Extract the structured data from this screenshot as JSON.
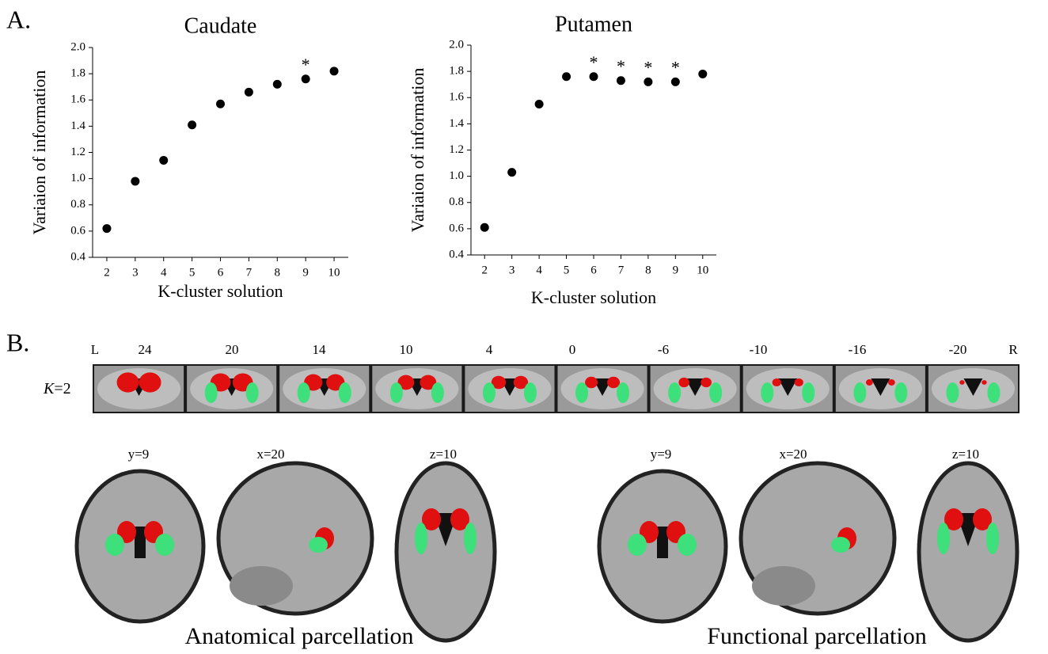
{
  "panel_a_label": "A.",
  "panel_b_label": "B.",
  "chart_data": [
    {
      "type": "scatter",
      "title": "Caudate",
      "x_label": "K-cluster solution",
      "y_label": "Variaion of information",
      "x": [
        2,
        3,
        4,
        5,
        6,
        7,
        8,
        9,
        10
      ],
      "values": [
        0.62,
        0.98,
        1.14,
        1.41,
        1.57,
        1.66,
        1.72,
        1.76,
        1.82
      ],
      "color": "#000000",
      "xlim": [
        1.5,
        10.5
      ],
      "xticks": [
        2,
        3,
        4,
        5,
        6,
        7,
        8,
        9,
        10
      ],
      "ylim": [
        0.4,
        2.0
      ],
      "yticks": [
        0.4,
        0.6,
        0.8,
        {
          "value": 1,
          "label": "1.0"
        },
        1.2,
        1.4,
        1.6,
        1.8,
        {
          "value": 2,
          "label": "2.0"
        }
      ],
      "annotations": [
        {
          "x": 9,
          "label": "*"
        }
      ]
    },
    {
      "type": "scatter",
      "title": "Putamen",
      "x_label": "K-cluster solution",
      "y_label": "Variaion of information",
      "x": [
        2,
        3,
        4,
        5,
        6,
        7,
        8,
        9,
        10
      ],
      "values": [
        0.61,
        1.03,
        1.55,
        1.76,
        1.76,
        1.73,
        1.72,
        1.72,
        1.78
      ],
      "color": "#000000",
      "xlim": [
        1.5,
        10.5
      ],
      "xticks": [
        2,
        3,
        4,
        5,
        6,
        7,
        8,
        9,
        10
      ],
      "ylim": [
        0.4,
        2.0
      ],
      "yticks": [
        0.4,
        0.6,
        0.8,
        {
          "value": 1,
          "label": "1.0"
        },
        1.2,
        1.4,
        1.6,
        1.8,
        {
          "value": 2,
          "label": "2.0"
        }
      ],
      "annotations": [
        {
          "x": 6,
          "label": "*"
        },
        {
          "x": 7,
          "label": "*"
        },
        {
          "x": 8,
          "label": "*"
        },
        {
          "x": 9,
          "label": "*"
        }
      ]
    }
  ],
  "strip": {
    "left": "L",
    "right": "R",
    "k_italic": "K",
    "k_rest": "=2",
    "slices": [
      "24",
      "20",
      "14",
      "10",
      "4",
      "0",
      "-6",
      "-10",
      "-16",
      "-20"
    ]
  },
  "views": {
    "anatomical": {
      "labels": [
        "y=9",
        "x=20",
        "z=10"
      ],
      "caption": "Anatomical parcellation"
    },
    "functional": {
      "labels": [
        "y=9",
        "x=20",
        "z=10"
      ],
      "caption": "Functional parcellation"
    }
  }
}
